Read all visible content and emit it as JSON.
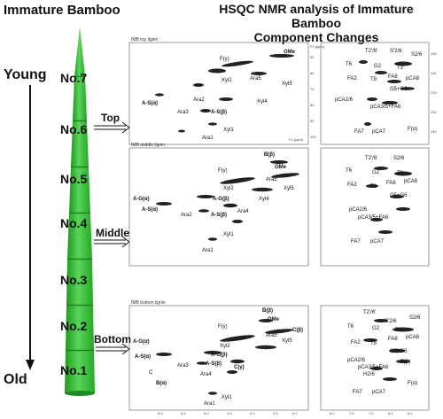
{
  "figure": {
    "title_left": "Immature Bamboo",
    "title_right_line1": "HSQC NMR analysis of Immature Bamboo",
    "title_right_line2": "Component Changes",
    "young_label": "Young",
    "old_label": "Old",
    "segments": [
      "No.7",
      "No.6",
      "No.5",
      "No.4",
      "No.3",
      "No.2",
      "No.1"
    ],
    "positions": [
      "Top",
      "Middle",
      "Bottom"
    ],
    "bamboo_color": "#3cc03c",
    "panels": [
      {
        "title": "IMB top lignin",
        "left_peaks": [
          "F(γ)",
          "OMe",
          "Xyl2",
          "Ara5",
          "Xyl5",
          "Xyl4",
          "A-S(α)",
          "Ara2",
          "Ara3",
          "A-S(β)",
          "Xyl1",
          "Ara1"
        ],
        "right_peaks": [
          "T2'/6'",
          "S'2/6",
          "S2/6",
          "T6",
          "G2",
          "T3",
          "FA2",
          "T8",
          "FA8",
          "pCA8",
          "G5+G6",
          "pCA2/6",
          "pCA3/5+FA6",
          "FA7",
          "pCA7",
          "F(α)"
        ]
      },
      {
        "title": "IMB middle lignin",
        "left_peaks": [
          "B(β)",
          "OMe",
          "F(γ)",
          "Ara5",
          "Xyl5",
          "A-G(α)",
          "Xyl2",
          "A-S(α)",
          "A-G(β)",
          "Xyl4",
          "Ara2",
          "Ara4",
          "A-S(β)",
          "Xyl1",
          "Ara1"
        ],
        "right_peaks": [
          "T2'/6'",
          "S2/6",
          "T6",
          "G2",
          "T3",
          "FA2",
          "T8",
          "FA8",
          "pCA8",
          "G5+G6",
          "pCA2/6",
          "pCA3/5+FA6",
          "FA7",
          "pCA7"
        ]
      },
      {
        "title": "IMB bottom lignin",
        "left_peaks": [
          "B(β)",
          "OMe",
          "F(γ)",
          "Ara5",
          "Xyl5",
          "C(β)",
          "A-G(α)",
          "Xyl2",
          "A-S(α)",
          "A-G(β)",
          "Ara3",
          "Ara4",
          "A-S(β)",
          "C(γ)",
          "B(α)",
          "C",
          "Xyl1",
          "Ara1"
        ],
        "right_peaks": [
          "T2'/6'",
          "S'2/6",
          "S2/6",
          "T6",
          "G2",
          "T3",
          "FA2",
          "T8",
          "FA8",
          "pCA8",
          "G5+G6",
          "pCA2/6",
          "pCA3/5+FA6",
          "H2/6",
          "F(β)",
          "FA7",
          "pCA7",
          "F(α)"
        ]
      }
    ],
    "axis": {
      "left_x_ticks": [
        "6.0",
        "5.5",
        "5.0",
        "4.5",
        "4.0",
        "3.5",
        "3.0"
      ],
      "right_x_ticks": [
        "8.0",
        "7.5",
        "7.0",
        "6.5",
        "6.0"
      ],
      "left_y_ticks": [
        "50",
        "60",
        "70",
        "80",
        "90",
        "100"
      ],
      "right_y_ticks": [
        "100",
        "110",
        "120",
        "130",
        "140"
      ],
      "x_unit": "F2 [ppm]",
      "y_unit": "F1 [ppm]"
    }
  }
}
